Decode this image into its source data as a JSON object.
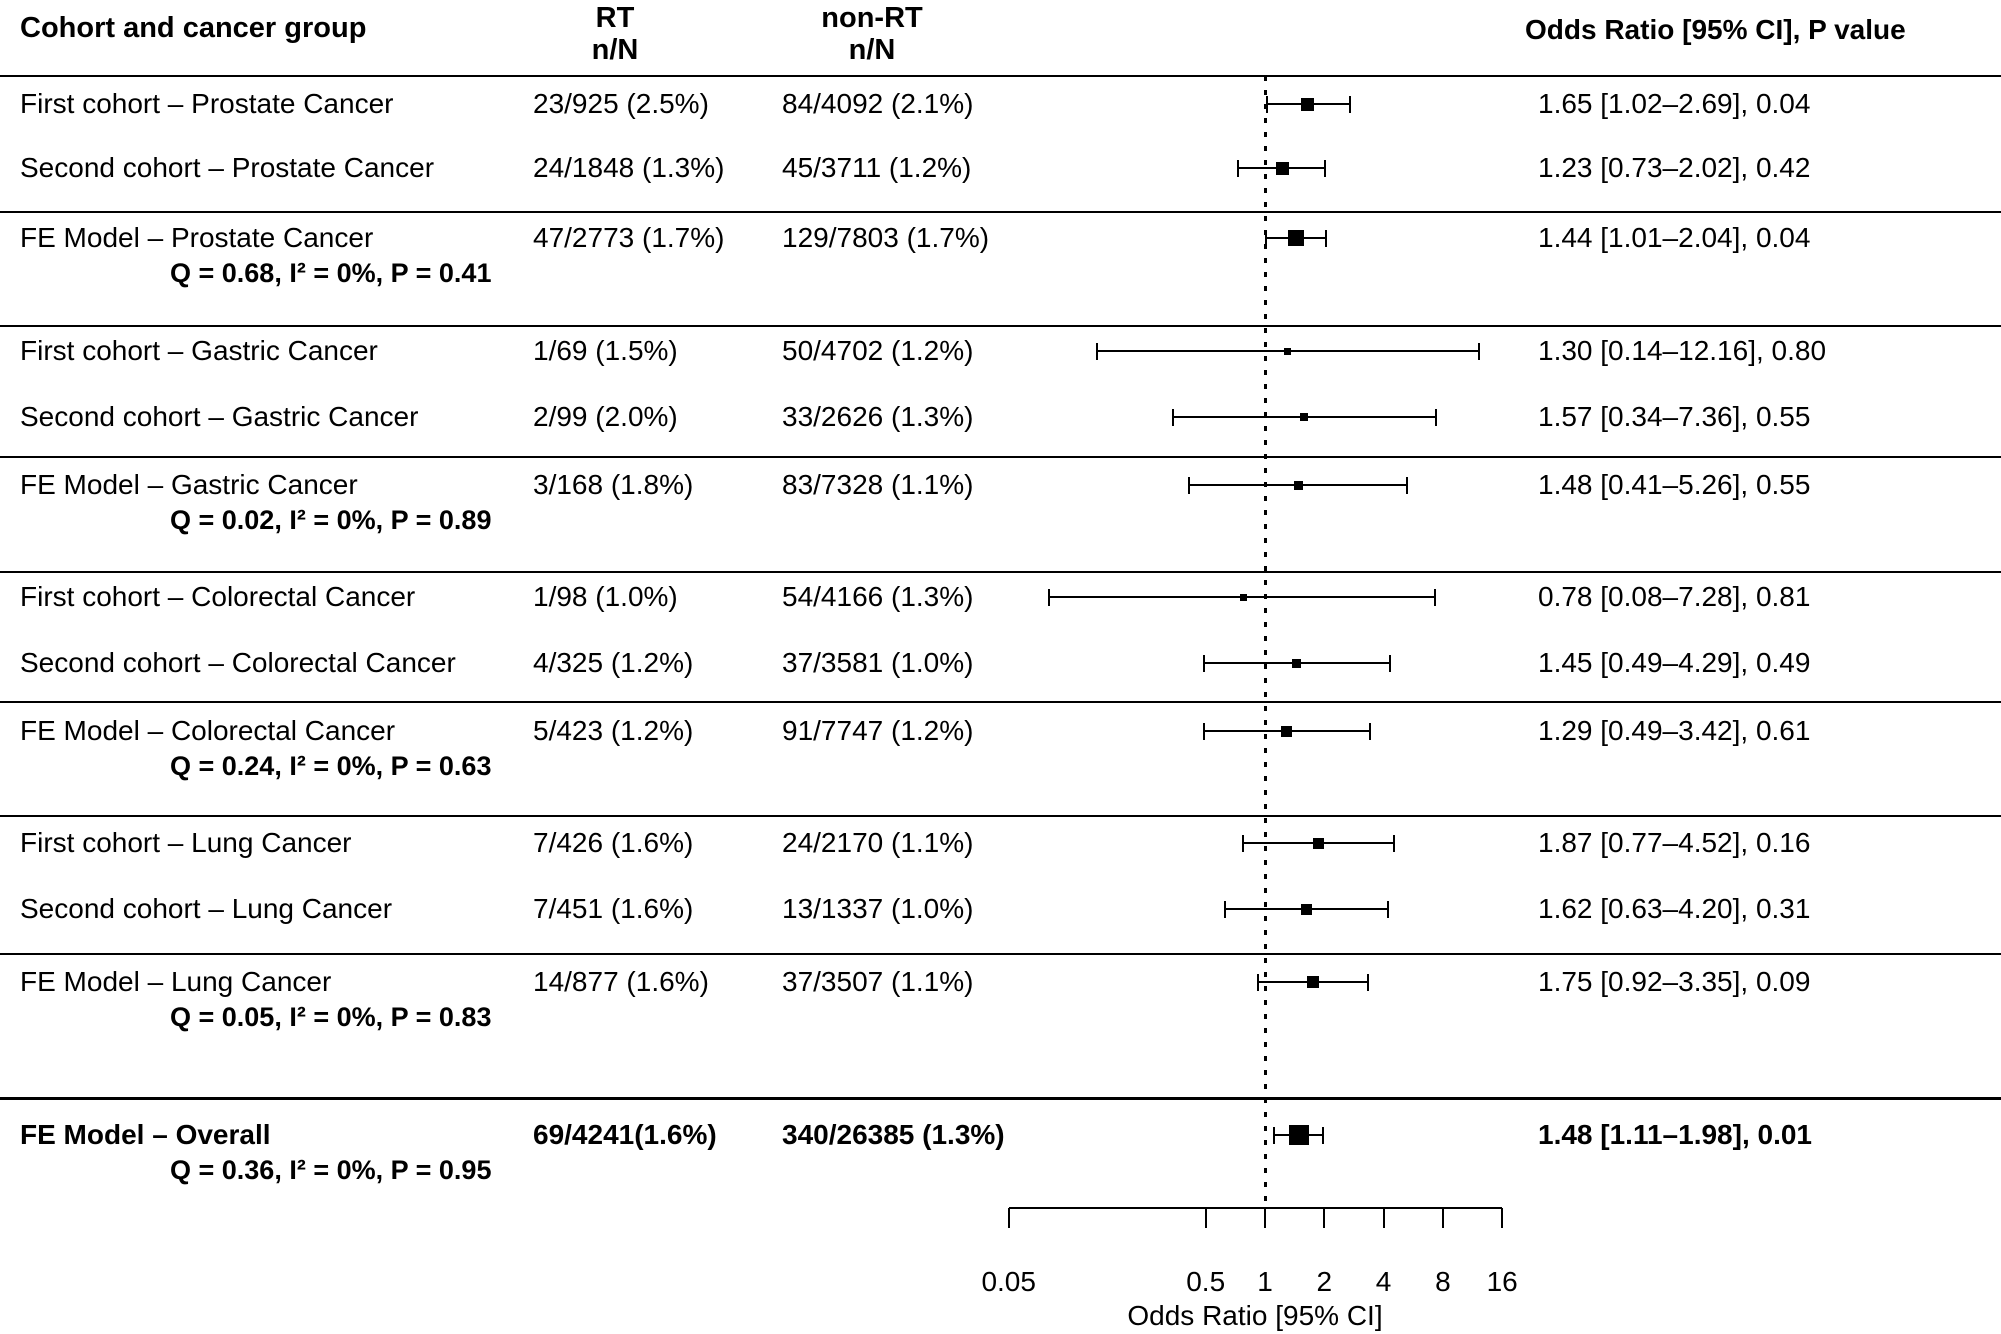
{
  "figure": {
    "columns": {
      "cohort_header": "Cohort and cancer group",
      "rt_header_line1": "RT",
      "rt_header_line2": "n/N",
      "nonrt_header_line1": "non-RT",
      "nonrt_header_line2": "n/N",
      "or_header": "Odds Ratio [95% CI], P value"
    }
  },
  "chart_data": {
    "type": "forest",
    "x_scale": "log2",
    "x_range": [
      0.05,
      16
    ],
    "reference_line": 1,
    "axis": {
      "tick_values": [
        0.05,
        0.5,
        1,
        2,
        4,
        8,
        16
      ],
      "tick_labels": [
        "0.05",
        "0.5",
        "1",
        "2",
        "4",
        "8",
        "16"
      ],
      "label": "Odds Ratio [95% CI]"
    },
    "rows": [
      {
        "label": "First cohort – Prostate Cancer",
        "rt": "23/925 (2.5%)",
        "nonrt": "84/4092 (2.1%)",
        "or": 1.65,
        "ci": [
          1.02,
          2.69
        ],
        "or_text": "1.65 [1.02–2.69], 0.04",
        "q_stats": null,
        "bold": false
      },
      {
        "label": "Second cohort – Prostate Cancer",
        "rt": "24/1848 (1.3%)",
        "nonrt": "45/3711 (1.2%)",
        "or": 1.23,
        "ci": [
          0.73,
          2.02
        ],
        "or_text": "1.23 [0.73–2.02], 0.42",
        "q_stats": null,
        "bold": false
      },
      {
        "label": "FE Model – Prostate Cancer",
        "rt": "47/2773 (1.7%)",
        "nonrt": "129/7803 (1.7%)",
        "or": 1.44,
        "ci": [
          1.01,
          2.04
        ],
        "or_text": "1.44 [1.01–2.04], 0.04",
        "q_stats": "Q = 0.68, I² = 0%, P = 0.41",
        "bold": false
      },
      {
        "label": "First cohort – Gastric Cancer",
        "rt": "1/69 (1.5%)",
        "nonrt": "50/4702 (1.2%)",
        "or": 1.3,
        "ci": [
          0.14,
          12.16
        ],
        "or_text": "1.30 [0.14–12.16], 0.80",
        "q_stats": null,
        "bold": false
      },
      {
        "label": "Second cohort – Gastric Cancer",
        "rt": "2/99 (2.0%)",
        "nonrt": "33/2626 (1.3%)",
        "or": 1.57,
        "ci": [
          0.34,
          7.36
        ],
        "or_text": "1.57 [0.34–7.36], 0.55",
        "q_stats": null,
        "bold": false
      },
      {
        "label": "FE Model – Gastric Cancer",
        "rt": "3/168 (1.8%)",
        "nonrt": "83/7328 (1.1%)",
        "or": 1.48,
        "ci": [
          0.41,
          5.26
        ],
        "or_text": "1.48 [0.41–5.26], 0.55",
        "q_stats": "Q = 0.02, I² = 0%, P = 0.89",
        "bold": false
      },
      {
        "label": "First cohort – Colorectal Cancer",
        "rt": "1/98 (1.0%)",
        "nonrt": "54/4166 (1.3%)",
        "or": 0.78,
        "ci": [
          0.08,
          7.28
        ],
        "or_text": "0.78 [0.08–7.28], 0.81",
        "q_stats": null,
        "bold": false
      },
      {
        "label": "Second cohort – Colorectal Cancer",
        "rt": "4/325 (1.2%)",
        "nonrt": "37/3581 (1.0%)",
        "or": 1.45,
        "ci": [
          0.49,
          4.29
        ],
        "or_text": "1.45 [0.49–4.29], 0.49",
        "q_stats": null,
        "bold": false
      },
      {
        "label": "FE Model – Colorectal Cancer",
        "rt": "5/423 (1.2%)",
        "nonrt": "91/7747 (1.2%)",
        "or": 1.29,
        "ci": [
          0.49,
          3.42
        ],
        "or_text": "1.29 [0.49–3.42], 0.61",
        "q_stats": "Q = 0.24, I² = 0%, P = 0.63",
        "bold": false
      },
      {
        "label": "First cohort – Lung Cancer",
        "rt": "7/426 (1.6%)",
        "nonrt": "24/2170 (1.1%)",
        "or": 1.87,
        "ci": [
          0.77,
          4.52
        ],
        "or_text": "1.87 [0.77–4.52], 0.16",
        "q_stats": null,
        "bold": false
      },
      {
        "label": "Second cohort – Lung Cancer",
        "rt": "7/451 (1.6%)",
        "nonrt": "13/1337 (1.0%)",
        "or": 1.62,
        "ci": [
          0.63,
          4.2
        ],
        "or_text": "1.62 [0.63–4.20], 0.31",
        "q_stats": null,
        "bold": false
      },
      {
        "label": "FE Model – Lung Cancer",
        "rt": "14/877 (1.6%)",
        "nonrt": "37/3507 (1.1%)",
        "or": 1.75,
        "ci": [
          0.92,
          3.35
        ],
        "or_text": "1.75 [0.92–3.35], 0.09",
        "q_stats": "Q = 0.05, I² = 0%, P = 0.83",
        "bold": false
      },
      {
        "label": "FE Model – Overall",
        "rt": "69/4241(1.6%)",
        "nonrt": "340/26385 (1.3%)",
        "or": 1.48,
        "ci": [
          1.11,
          1.98
        ],
        "or_text": "1.48 [1.11–1.98], 0.01",
        "q_stats": "Q = 0.36, I² = 0%, P = 0.95",
        "bold": true
      }
    ]
  }
}
